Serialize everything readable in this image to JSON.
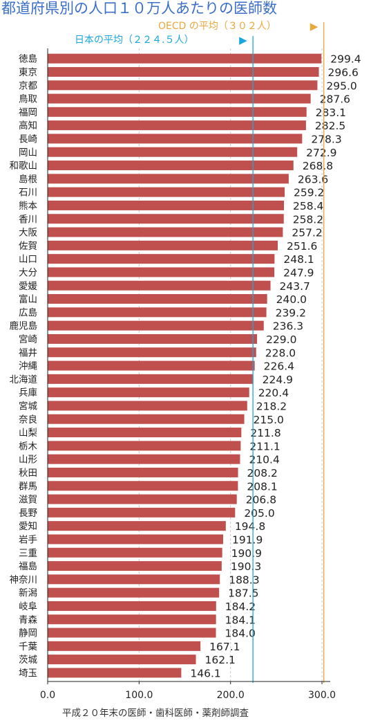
{
  "chart_data": {
    "type": "bar",
    "orientation": "horizontal",
    "title": "都道府県別の人口１０万人あたりの医師数",
    "source": "平成２０年末の医師・歯科医師・薬剤師調査",
    "categories": [
      "徳島",
      "東京",
      "京都",
      "鳥取",
      "福岡",
      "高知",
      "長崎",
      "岡山",
      "和歌山",
      "島根",
      "石川",
      "熊本",
      "香川",
      "大阪",
      "佐賀",
      "山口",
      "大分",
      "愛媛",
      "富山",
      "広島",
      "鹿児島",
      "宮崎",
      "福井",
      "沖縄",
      "北海道",
      "兵庫",
      "宮城",
      "奈良",
      "山梨",
      "栃木",
      "山形",
      "秋田",
      "群馬",
      "滋賀",
      "長野",
      "愛知",
      "岩手",
      "三重",
      "福島",
      "神奈川",
      "新潟",
      "岐阜",
      "青森",
      "静岡",
      "千葉",
      "茨城",
      "埼玉"
    ],
    "values": [
      299.4,
      296.6,
      295.0,
      287.6,
      283.1,
      282.5,
      278.3,
      272.9,
      268.8,
      263.6,
      259.2,
      258.4,
      258.2,
      257.2,
      251.6,
      248.1,
      247.9,
      243.7,
      240.0,
      239.2,
      236.3,
      229.0,
      228.0,
      226.4,
      224.9,
      220.4,
      218.2,
      215.0,
      211.8,
      211.1,
      210.4,
      208.2,
      208.1,
      206.8,
      205.0,
      194.8,
      191.9,
      190.9,
      190.3,
      188.3,
      187.5,
      184.2,
      184.1,
      184.0,
      167.1,
      162.1,
      146.1
    ],
    "value_labels": [
      "299.4",
      "296.6",
      "295.0",
      "287.6",
      "283.1",
      "282.5",
      "278.3",
      "272.9",
      "268.8",
      "263.6",
      "259.2",
      "258.4",
      "258.2",
      "257.2",
      "251.6",
      "248.1",
      "247.9",
      "243.7",
      "240.0",
      "239.2",
      "236.3",
      "229.0",
      "228.0",
      "226.4",
      "224.9",
      "220.4",
      "218.2",
      "215.0",
      "211.8",
      "211.1",
      "210.4",
      "208.2",
      "208.1",
      "206.8",
      "205.0",
      "194.8",
      "191.9",
      "190.9",
      "190.3",
      "188.3",
      "187.5",
      "184.2",
      "184.1",
      "184.0",
      "167.1",
      "162.1",
      "146.1"
    ],
    "xlim": [
      0,
      300
    ],
    "xticks": [
      0,
      100,
      200,
      300
    ],
    "xtick_labels": [
      "0.0",
      "100.0",
      "200.0",
      "300.0"
    ],
    "grid": "vertical dashed",
    "reference_lines": [
      {
        "label": "OECD の平均（３０２人）",
        "value": 302,
        "color": "#e8a83a",
        "marker": "▶"
      },
      {
        "label": "日本の平均（２２４.５人）",
        "value": 224.5,
        "color": "#1aa7df",
        "marker": "▶"
      }
    ],
    "bar_color": "#c0504d"
  }
}
